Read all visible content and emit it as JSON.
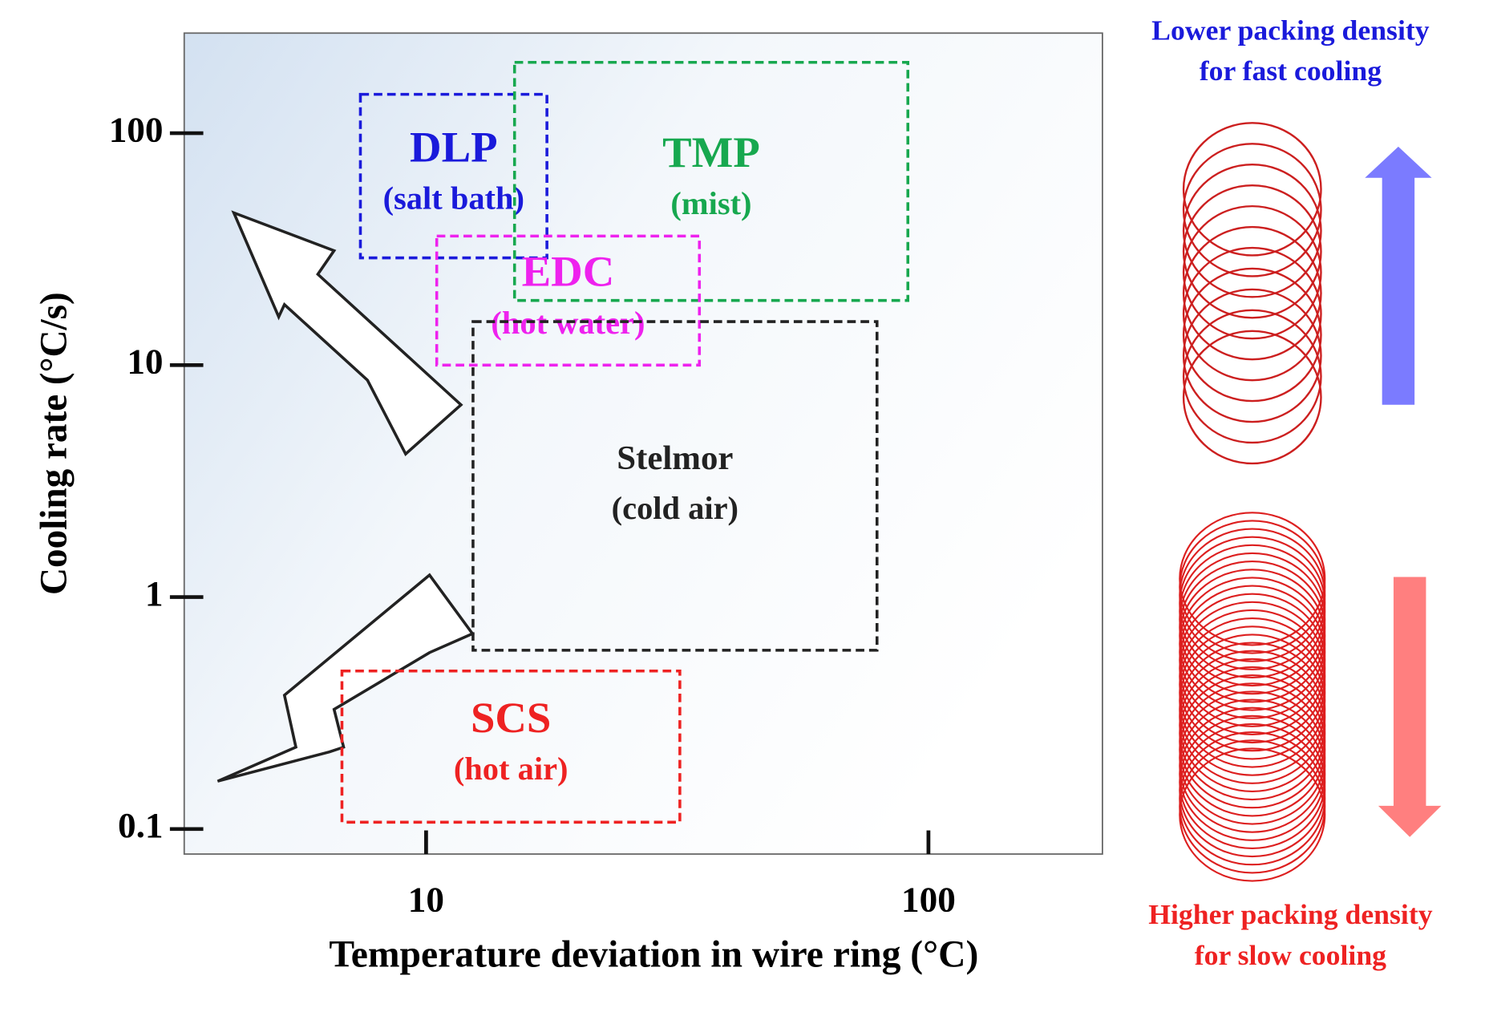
{
  "chart_data": {
    "type": "region",
    "xlabel": "Temperature deviation in wire ring (°C)",
    "ylabel": "Cooling rate (°C/s)",
    "xscale": "log",
    "yscale": "log",
    "xlim": [
      3.3,
      222
    ],
    "ylim": [
      0.078,
      270
    ],
    "xticks": [
      10,
      100
    ],
    "yticks": [
      0.1,
      1,
      10,
      100
    ],
    "regions": [
      {
        "name": "DLP",
        "sublabel": "(salt bath)",
        "color": "#1a1adb",
        "x": [
          7.4,
          17.4
        ],
        "y": [
          29,
          147
        ]
      },
      {
        "name": "TMP",
        "sublabel": "(mist)",
        "color": "#17a84f",
        "x": [
          15,
          91
        ],
        "y": [
          19,
          202
        ]
      },
      {
        "name": "EDC",
        "sublabel": "(hot water)",
        "color": "#ee22ee",
        "x": [
          10.5,
          35
        ],
        "y": [
          10,
          36
        ]
      },
      {
        "name": "Stelmor",
        "sublabel": "(cold air)",
        "color": "#222222",
        "x": [
          12.4,
          79
        ],
        "y": [
          0.59,
          15.4
        ]
      },
      {
        "name": "SCS",
        "sublabel": "(hot air)",
        "color": "#ee2222",
        "x": [
          6.8,
          32
        ],
        "y": [
          0.107,
          0.48
        ]
      }
    ],
    "side_notes": [
      {
        "lines": [
          "Lower packing density",
          "for fast cooling"
        ],
        "color": "#1a1adb"
      },
      {
        "lines": [
          "Higher packing density",
          "for slow cooling"
        ],
        "color": "#ee2222"
      }
    ]
  }
}
